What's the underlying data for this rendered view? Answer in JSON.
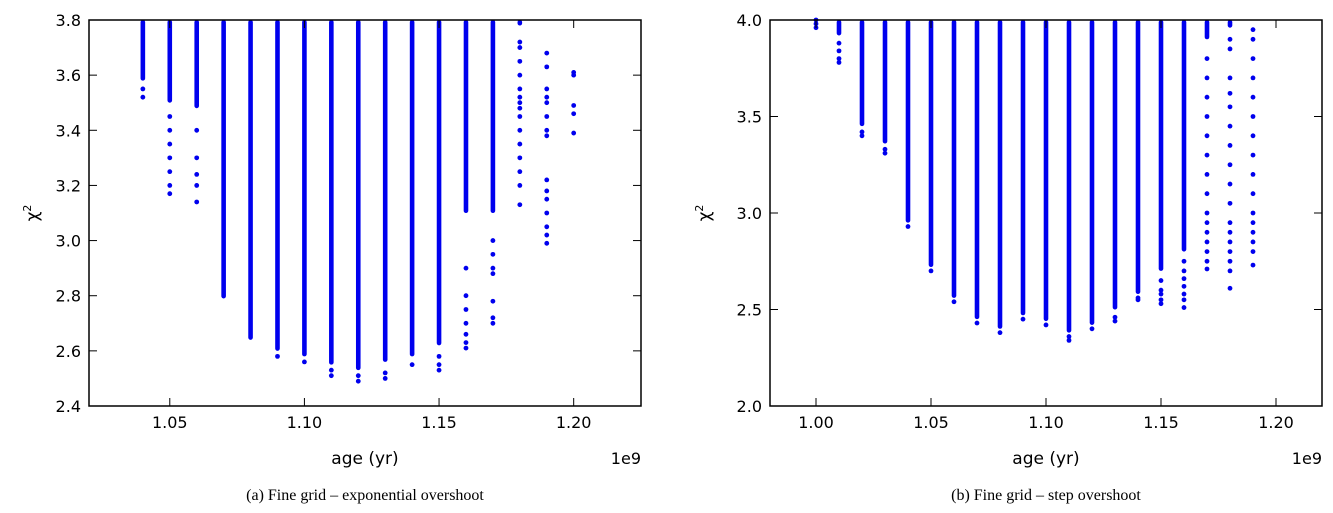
{
  "colors": {
    "points": "#0000ee",
    "axes": "#000000",
    "background": "#ffffff"
  },
  "chart_data": [
    {
      "type": "scatter",
      "caption": "(a) Fine grid – exponential overshoot",
      "xlabel": "age (yr)",
      "ylabel": "χ",
      "ylabel_superscript": "2",
      "x_offset_label": "1e9",
      "xlim": [
        1.02,
        1.225
      ],
      "ylim": [
        2.4,
        3.8
      ],
      "xticks": [
        1.05,
        1.1,
        1.15,
        1.2
      ],
      "xtick_labels": [
        "1.05",
        "1.10",
        "1.15",
        "1.20"
      ],
      "yticks": [
        2.4,
        2.6,
        2.8,
        3.0,
        3.2,
        3.4,
        3.6,
        3.8
      ],
      "ytick_labels": [
        "2.4",
        "2.6",
        "2.8",
        "3.0",
        "3.2",
        "3.4",
        "3.6",
        "3.8"
      ],
      "grid": false,
      "series": [
        {
          "columns": [
            {
              "x": 1.04,
              "dense_from": 3.58,
              "sparse": [
                3.55,
                3.52
              ]
            },
            {
              "x": 1.05,
              "dense_from": 3.5,
              "sparse": [
                3.45,
                3.4,
                3.35,
                3.3,
                3.25,
                3.2,
                3.17
              ]
            },
            {
              "x": 1.06,
              "dense_from": 3.48,
              "sparse": [
                3.4,
                3.3,
                3.24,
                3.2,
                3.14
              ]
            },
            {
              "x": 1.07,
              "dense_from": 2.79,
              "sparse": []
            },
            {
              "x": 1.08,
              "dense_from": 2.64,
              "sparse": []
            },
            {
              "x": 1.09,
              "dense_from": 2.6,
              "sparse": [
                2.58
              ]
            },
            {
              "x": 1.1,
              "dense_from": 2.58,
              "sparse": [
                2.56
              ]
            },
            {
              "x": 1.11,
              "dense_from": 2.55,
              "sparse": [
                2.53,
                2.51
              ]
            },
            {
              "x": 1.12,
              "dense_from": 2.53,
              "sparse": [
                2.51,
                2.49
              ]
            },
            {
              "x": 1.13,
              "dense_from": 2.56,
              "sparse": [
                2.52,
                2.5
              ]
            },
            {
              "x": 1.14,
              "dense_from": 2.58,
              "sparse": [
                2.55
              ]
            },
            {
              "x": 1.15,
              "dense_from": 2.62,
              "sparse": [
                2.58,
                2.55,
                2.53
              ]
            },
            {
              "x": 1.16,
              "dense_from": 3.1,
              "sparse": [
                2.9,
                2.8,
                2.75,
                2.7,
                2.66,
                2.63,
                2.61
              ]
            },
            {
              "x": 1.17,
              "dense_from": 3.1,
              "sparse": [
                3.0,
                2.95,
                2.9,
                2.88,
                2.78,
                2.72,
                2.7
              ]
            },
            {
              "x": 1.18,
              "dense_from": 3.78,
              "sparse": [
                3.72,
                3.7,
                3.65,
                3.6,
                3.55,
                3.52,
                3.5,
                3.48,
                3.45,
                3.4,
                3.35,
                3.3,
                3.25,
                3.2,
                3.13
              ]
            },
            {
              "x": 1.19,
              "dense_from": null,
              "sparse": [
                3.68,
                3.63,
                3.55,
                3.52,
                3.5,
                3.45,
                3.4,
                3.38,
                3.22,
                3.18,
                3.15,
                3.1,
                3.05,
                3.02,
                2.99
              ]
            },
            {
              "x": 1.2,
              "dense_from": null,
              "sparse": [
                3.61,
                3.6,
                3.49,
                3.46,
                3.39
              ]
            }
          ]
        }
      ]
    },
    {
      "type": "scatter",
      "caption": "(b) Fine grid – step overshoot",
      "xlabel": "age (yr)",
      "ylabel": "χ",
      "ylabel_superscript": "2",
      "x_offset_label": "1e9",
      "xlim": [
        0.98,
        1.22
      ],
      "ylim": [
        2.0,
        4.0
      ],
      "xticks": [
        1.0,
        1.05,
        1.1,
        1.15,
        1.2
      ],
      "xtick_labels": [
        "1.00",
        "1.05",
        "1.10",
        "1.15",
        "1.20"
      ],
      "yticks": [
        2.0,
        2.5,
        3.0,
        3.5,
        4.0
      ],
      "ytick_labels": [
        "2.0",
        "2.5",
        "3.0",
        "3.5",
        "4.0"
      ],
      "grid": false,
      "series": [
        {
          "columns": [
            {
              "x": 1.0,
              "dense_from": null,
              "sparse": [
                4.0,
                3.98,
                3.96
              ]
            },
            {
              "x": 1.01,
              "dense_from": 3.92,
              "sparse": [
                3.88,
                3.84,
                3.8,
                3.78
              ]
            },
            {
              "x": 1.02,
              "dense_from": 3.45,
              "sparse": [
                3.42,
                3.4
              ]
            },
            {
              "x": 1.03,
              "dense_from": 3.36,
              "sparse": [
                3.33,
                3.31
              ]
            },
            {
              "x": 1.04,
              "dense_from": 2.95,
              "sparse": [
                2.93
              ]
            },
            {
              "x": 1.05,
              "dense_from": 2.72,
              "sparse": [
                2.7
              ]
            },
            {
              "x": 1.06,
              "dense_from": 2.56,
              "sparse": [
                2.54
              ]
            },
            {
              "x": 1.07,
              "dense_from": 2.45,
              "sparse": [
                2.43
              ]
            },
            {
              "x": 1.08,
              "dense_from": 2.4,
              "sparse": [
                2.38
              ]
            },
            {
              "x": 1.09,
              "dense_from": 2.47,
              "sparse": [
                2.45
              ]
            },
            {
              "x": 1.1,
              "dense_from": 2.44,
              "sparse": [
                2.42
              ]
            },
            {
              "x": 1.11,
              "dense_from": 2.38,
              "sparse": [
                2.36,
                2.34
              ]
            },
            {
              "x": 1.12,
              "dense_from": 2.42,
              "sparse": [
                2.4
              ]
            },
            {
              "x": 1.13,
              "dense_from": 2.5,
              "sparse": [
                2.46,
                2.44
              ]
            },
            {
              "x": 1.14,
              "dense_from": 2.58,
              "sparse": [
                2.56,
                2.55
              ]
            },
            {
              "x": 1.15,
              "dense_from": 2.7,
              "sparse": [
                2.65,
                2.6,
                2.58,
                2.55,
                2.53
              ]
            },
            {
              "x": 1.16,
              "dense_from": 2.8,
              "sparse": [
                2.75,
                2.7,
                2.66,
                2.62,
                2.58,
                2.55,
                2.51
              ]
            },
            {
              "x": 1.17,
              "dense_from": 3.9,
              "sparse": [
                3.8,
                3.7,
                3.6,
                3.5,
                3.4,
                3.3,
                3.2,
                3.1,
                3.0,
                2.95,
                2.9,
                2.85,
                2.8,
                2.75,
                2.71
              ]
            },
            {
              "x": 1.18,
              "dense_from": 3.96,
              "sparse": [
                3.9,
                3.85,
                3.7,
                3.62,
                3.55,
                3.45,
                3.35,
                3.25,
                3.15,
                3.05,
                2.95,
                2.9,
                2.85,
                2.8,
                2.75,
                2.7,
                2.61
              ]
            },
            {
              "x": 1.19,
              "dense_from": null,
              "sparse": [
                3.95,
                3.9,
                3.8,
                3.7,
                3.6,
                3.5,
                3.4,
                3.3,
                3.2,
                3.1,
                3.0,
                2.95,
                2.9,
                2.85,
                2.8,
                2.73
              ]
            }
          ]
        }
      ]
    }
  ]
}
